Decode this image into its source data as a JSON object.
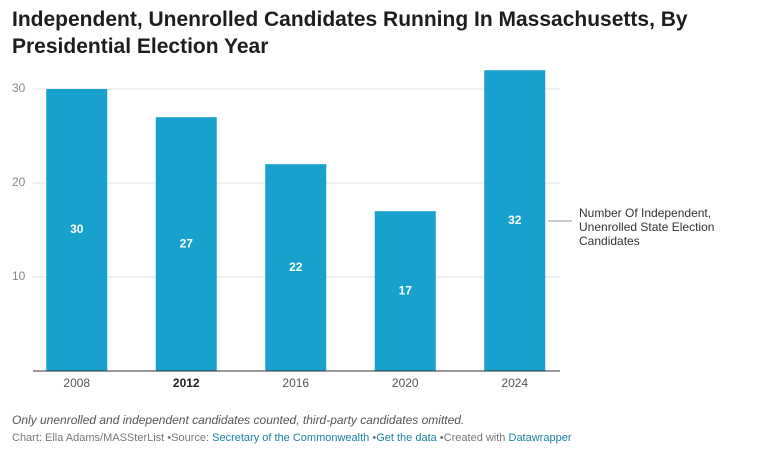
{
  "chart_data": {
    "type": "bar",
    "title": "Independent, Unenrolled Candidates Running In Massachusetts, By Presidential Election Year",
    "categories": [
      "2008",
      "2012",
      "2016",
      "2020",
      "2024"
    ],
    "bold_category": "2012",
    "series": [
      {
        "name": "Number Of Independent, Unenrolled State Election Candidates",
        "color": "#18a1cd",
        "values": [
          30,
          27,
          22,
          17,
          32
        ]
      }
    ],
    "ylim": [
      0,
      32
    ],
    "yticks": [
      10,
      20,
      30
    ],
    "grid": true,
    "note": "Only unenrolled and independent candidates counted, third-party candidates omitted.",
    "credits": {
      "byline": "Chart: Ella Adams/MASSterList",
      "source_label": "Source:",
      "source": "Secretary of the Commonwealth",
      "data_link": "Get the data",
      "created_label": "Created with",
      "tool": "Datawrapper"
    }
  }
}
